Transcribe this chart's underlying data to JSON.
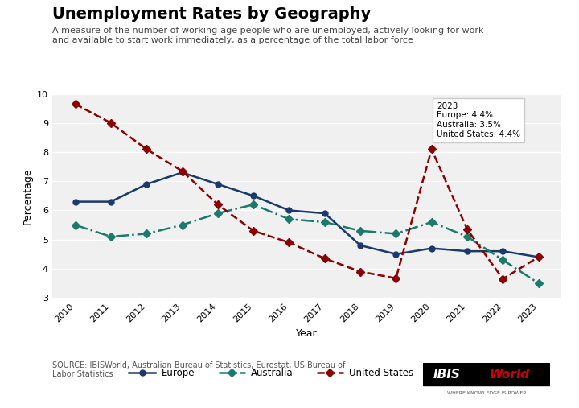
{
  "title": "Unemployment Rates by Geography",
  "subtitle": "A measure of the number of working-age people who are unemployed, actively looking for work\nand available to start work immediately, as a percentage of the total labor force",
  "xlabel": "Year",
  "ylabel": "Percentage",
  "years": [
    2010,
    2011,
    2012,
    2013,
    2014,
    2015,
    2016,
    2017,
    2018,
    2019,
    2020,
    2021,
    2022,
    2023
  ],
  "europe": [
    6.3,
    6.3,
    6.9,
    7.3,
    6.9,
    6.5,
    6.0,
    5.9,
    4.8,
    4.5,
    4.7,
    4.6,
    4.6,
    4.4
  ],
  "australia": [
    5.5,
    5.1,
    5.2,
    5.5,
    5.9,
    6.2,
    5.7,
    5.6,
    5.3,
    5.2,
    5.6,
    5.1,
    4.3,
    3.5
  ],
  "us": [
    9.65,
    9.0,
    8.1,
    7.35,
    6.2,
    5.3,
    4.9,
    4.35,
    3.9,
    3.67,
    8.1,
    5.35,
    3.65,
    4.4
  ],
  "europe_color": "#1a3a6b",
  "australia_color": "#1a7a6b",
  "us_color": "#8b0000",
  "bg_color": "#f0f0f0",
  "annotation_text": "2023\nEurope: 4.4%\nAustralia: 3.5%\nUnited States: 4.4%",
  "source_text": "SOURCE: IBISWorld, Australian Bureau of Statistics, Eurostat, US Bureau of\nLabor Statistics",
  "ylim": [
    3,
    10
  ],
  "yticks": [
    3,
    4,
    5,
    6,
    7,
    8,
    9,
    10
  ]
}
